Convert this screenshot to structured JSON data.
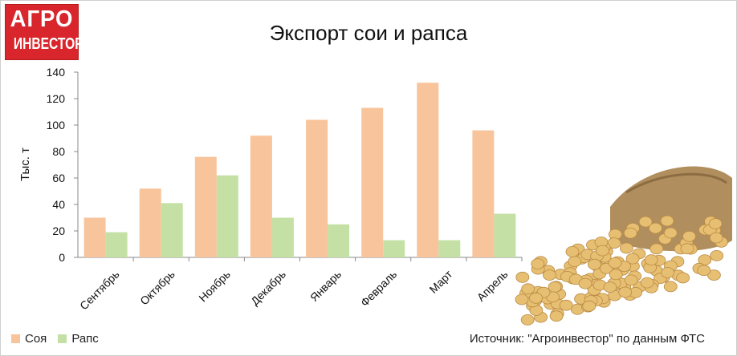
{
  "logo": {
    "line1": "АГРО",
    "line2": "ИНВЕСТОР"
  },
  "chart_data": {
    "type": "bar",
    "title": "Экспорт сои и рапса",
    "ylabel": "Тыс. т",
    "xlabel": "",
    "ylim": [
      0,
      140
    ],
    "yticks": [
      "0",
      "20",
      "40",
      "60",
      "80",
      "100",
      "120",
      "140"
    ],
    "categories": [
      "Сентябрь",
      "Октябрь",
      "Ноябрь",
      "Декабрь",
      "Январь",
      "Февраль",
      "Март",
      "Апрель"
    ],
    "series": [
      {
        "name": "Соя",
        "color": "#f8c49b",
        "values": [
          30,
          52,
          76,
          92,
          104,
          113,
          132,
          96
        ]
      },
      {
        "name": "Рапс",
        "color": "#c5e0a5",
        "values": [
          19,
          41,
          62,
          30,
          25,
          13,
          13,
          33
        ]
      }
    ],
    "grid": false,
    "legend": "bottom-left"
  },
  "source": "Источник: \"Агроинвестор\" по данным ФТС"
}
